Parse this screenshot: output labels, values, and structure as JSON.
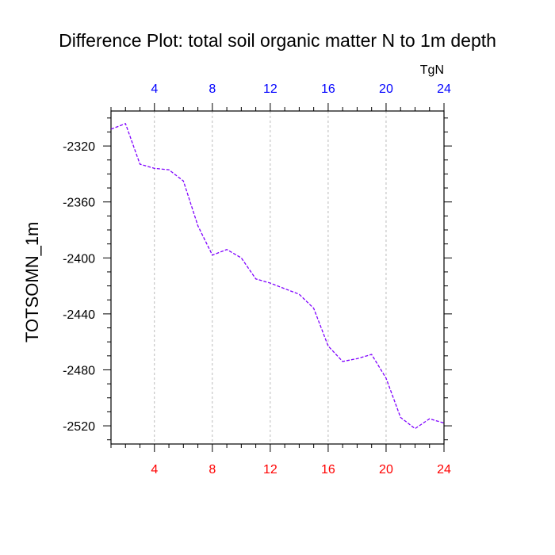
{
  "chart_data": {
    "type": "line",
    "title": "Difference Plot: total soil organic matter N to 1m depth",
    "units_label": "TgN",
    "ylabel": "TOTSOMN_1m",
    "xlabel": "",
    "xlim": [
      1,
      24
    ],
    "ylim": [
      -2533,
      -2295
    ],
    "x_ticks": [
      4,
      8,
      12,
      16,
      20,
      24
    ],
    "y_ticks": [
      -2320,
      -2360,
      -2400,
      -2440,
      -2480,
      -2520
    ],
    "grid_x": true,
    "grid_y": false,
    "colors": {
      "line": "#7f00ff",
      "top_ticks": "#0000ff",
      "bottom_ticks": "#ff0000",
      "grid": "#aaaaaa",
      "axis": "#000000"
    },
    "series": [
      {
        "x": [
          1,
          2,
          3,
          4,
          5,
          6,
          7,
          8,
          9,
          10,
          11,
          12,
          13,
          14,
          15,
          16,
          17,
          18,
          19,
          20,
          21,
          22,
          23,
          24
        ],
        "values": [
          -2308,
          -2304,
          -2333,
          -2336,
          -2337,
          -2345,
          -2377,
          -2398,
          -2394,
          -2400,
          -2415,
          -2418,
          -2422,
          -2426,
          -2436,
          -2463,
          -2474,
          -2472,
          -2469,
          -2486,
          -2514,
          -2522,
          -2515,
          -2518
        ]
      }
    ]
  }
}
